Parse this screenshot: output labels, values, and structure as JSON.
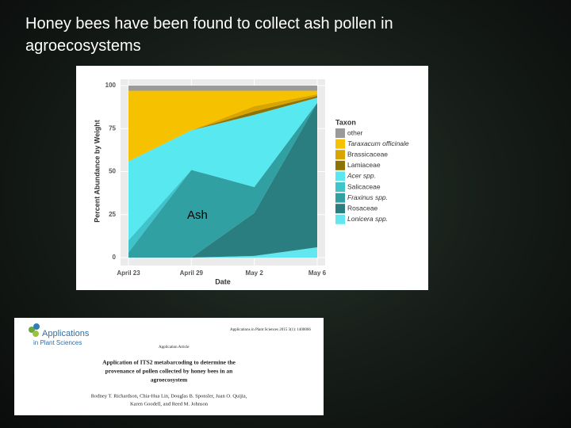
{
  "title": "Honey bees have been found to collect ash pollen in agroecosystems",
  "chart_data": {
    "type": "stacked-area",
    "x_label": "Date",
    "y_label": "Percent Abundance by Weight",
    "legend_title": "Taxon",
    "annotation": "Ash",
    "categories": [
      "April 23",
      "April 29",
      "May 2",
      "May 6"
    ],
    "ylim": [
      0,
      100
    ],
    "yticks": [
      0,
      25,
      50,
      75,
      100
    ],
    "grid": true,
    "legend": "right",
    "series": [
      {
        "name": "other",
        "color": "#9a9a9a",
        "values": [
          3,
          3,
          3,
          3
        ]
      },
      {
        "name": "Taraxacum officinale",
        "color": "#f6c200",
        "values": [
          41,
          23,
          9,
          2
        ]
      },
      {
        "name": "Brassicaceae",
        "color": "#d9a400",
        "values": [
          0,
          0,
          3,
          1
        ]
      },
      {
        "name": "Lamiaceae",
        "color": "#8c7200",
        "values": [
          0,
          0,
          2,
          1
        ]
      },
      {
        "name": "Acer spp.",
        "color": "#57e8f0",
        "values": [
          46,
          23,
          42,
          3
        ]
      },
      {
        "name": "Salicaceae",
        "color": "#40c4cb",
        "values": [
          7,
          0,
          0,
          0
        ]
      },
      {
        "name": "Fraxinus spp.",
        "color": "#30a0a3",
        "values": [
          3,
          51,
          15,
          0
        ]
      },
      {
        "name": "Rosaceae",
        "color": "#2b7e80",
        "values": [
          0,
          0,
          25,
          84
        ]
      },
      {
        "name": "Lonicera spp.",
        "color": "#62e6ef",
        "values": [
          0,
          0,
          1,
          6
        ]
      }
    ]
  },
  "paper": {
    "journal": "Applications",
    "journal_sub": "in Plant Sciences",
    "citation": "Applications in Plant Sciences 2015 3(1): 1400066",
    "article_type": "Application Article",
    "title_lines": [
      "Application of ITS2 metabarcoding to determine the",
      "provenance of pollen collected by honey bees in an",
      "agroecosystem"
    ],
    "author_lines": [
      "Rodney T. Richardson, Chia-Hua Lin, Douglas B. Sponsler, Juan O. Quijia,",
      "Karen Goodell, and Reed M. Johnson"
    ]
  }
}
